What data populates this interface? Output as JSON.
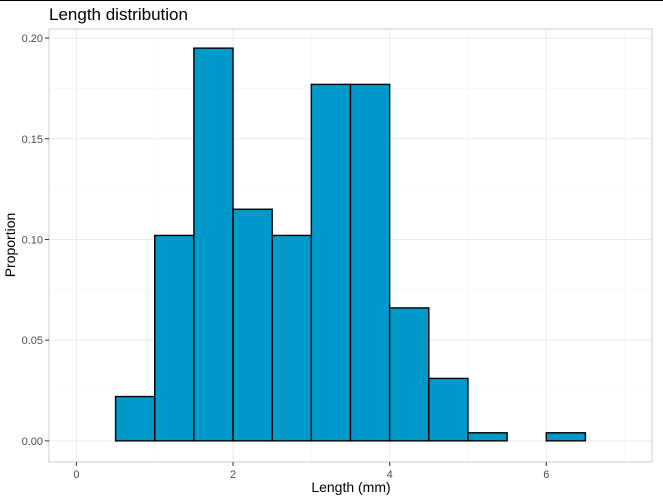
{
  "chart_data": {
    "type": "bar",
    "title": "Length distribution",
    "xlabel": "Length (mm)",
    "ylabel": "Proportion",
    "bin_width": 0.5,
    "bin_starts": [
      0,
      0.5,
      1.0,
      1.5,
      2.0,
      2.5,
      3.0,
      3.5,
      4.0,
      4.5,
      5.0,
      5.5,
      6.0,
      6.5
    ],
    "values": [
      0.0,
      0.022,
      0.102,
      0.195,
      0.115,
      0.102,
      0.177,
      0.177,
      0.066,
      0.031,
      0.004,
      0.0,
      0.004,
      0.0
    ],
    "xlim": [
      -0.35,
      7.35
    ],
    "ylim": [
      -0.0105,
      0.2045
    ],
    "x_ticks": [
      0,
      2,
      4,
      6
    ],
    "x_tick_labels": [
      "0",
      "2",
      "4",
      "6"
    ],
    "y_ticks": [
      0,
      0.05,
      0.1,
      0.15,
      0.2
    ],
    "y_tick_labels": [
      "0.00",
      "0.05",
      "0.10",
      "0.15",
      "0.20"
    ],
    "grid": true,
    "legend": "none",
    "colors": {
      "bar_fill": "#0099cc",
      "bar_outline": "#000000",
      "grid_major": "#ebebeb",
      "grid_minor": "#f5f5f5",
      "panel_border": "#cccccc"
    }
  }
}
